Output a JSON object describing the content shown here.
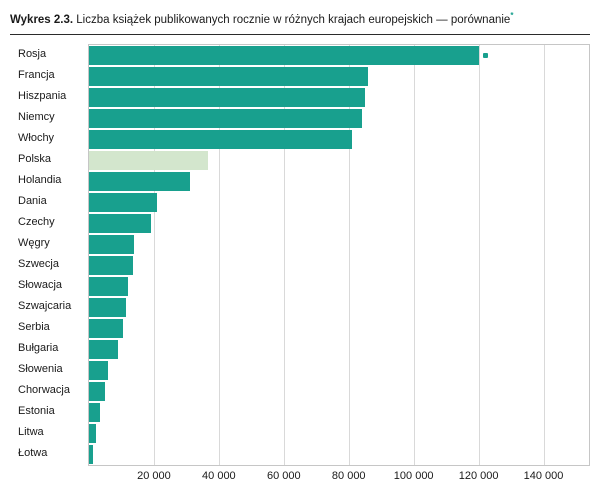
{
  "title": {
    "prefix": "Wykres 2.3.",
    "text": " Liczba książek publikowanych rocznie w różnych krajach europejskich — porównanie",
    "footnote_marker": "*"
  },
  "colors": {
    "bar": "#18a08e",
    "highlight_bar": "#d3e6cd",
    "gridline": "#d9d9d9",
    "frame": "#c6c6c6",
    "title_rule": "#2b2b2b"
  },
  "chart_data": {
    "type": "bar",
    "orientation": "horizontal",
    "title": "Wykres 2.3. Liczba książek publikowanych rocznie w różnych krajach europejskich — porównanie*",
    "categories": [
      "Rosja",
      "Francja",
      "Hiszpania",
      "Niemcy",
      "Włochy",
      "Polska",
      "Holandia",
      "Dania",
      "Czechy",
      "Węgry",
      "Szwecja",
      "Słowacja",
      "Szwajcaria",
      "Serbia",
      "Bułgaria",
      "Słowenia",
      "Chorwacja",
      "Estonia",
      "Litwa",
      "Łotwa"
    ],
    "values": [
      120000,
      86000,
      85000,
      84000,
      81000,
      36500,
      31000,
      21000,
      19000,
      14000,
      13500,
      12000,
      11500,
      10500,
      9000,
      6000,
      5000,
      3400,
      2200,
      1200
    ],
    "highlight_category": "Polska",
    "marker_category": "Rosja",
    "xlim": [
      0,
      154000
    ],
    "x_ticks": [
      20000,
      40000,
      60000,
      80000,
      100000,
      120000,
      140000
    ],
    "x_tick_labels": [
      "20 000",
      "40 000",
      "60 000",
      "80 000",
      "100 000",
      "120 000",
      "140 000"
    ],
    "xlabel": "",
    "ylabel": "",
    "grid": "vertical",
    "legend": "none"
  }
}
